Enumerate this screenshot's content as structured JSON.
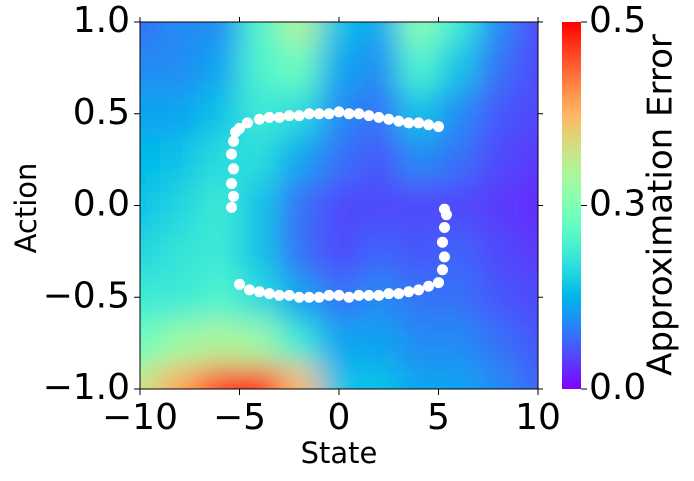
{
  "chart_data": {
    "type": "heatmap",
    "xlabel": "State",
    "ylabel": "Action",
    "colorbar_label": "Approximation Error",
    "x": [
      -10,
      -8,
      -6,
      -4,
      -2,
      0,
      2,
      4,
      6,
      8,
      10
    ],
    "y": [
      1,
      0.75,
      0.5,
      0.25,
      0,
      -0.25,
      -0.5,
      -0.75,
      -1
    ],
    "z": [
      [
        0.08,
        0.1,
        0.1,
        0.22,
        0.32,
        0.15,
        0.12,
        0.28,
        0.2,
        0.1,
        0.05
      ],
      [
        0.1,
        0.1,
        0.12,
        0.22,
        0.25,
        0.12,
        0.1,
        0.22,
        0.15,
        0.08,
        0.05
      ],
      [
        0.12,
        0.12,
        0.15,
        0.2,
        0.18,
        0.1,
        0.08,
        0.15,
        0.1,
        0.06,
        0.05
      ],
      [
        0.14,
        0.15,
        0.18,
        0.18,
        0.12,
        0.08,
        0.06,
        0.1,
        0.08,
        0.05,
        0.04
      ],
      [
        0.15,
        0.17,
        0.2,
        0.15,
        0.08,
        0.05,
        0.05,
        0.05,
        0.05,
        0.04,
        0.03
      ],
      [
        0.17,
        0.19,
        0.2,
        0.15,
        0.08,
        0.05,
        0.07,
        0.06,
        0.07,
        0.05,
        0.04
      ],
      [
        0.2,
        0.2,
        0.22,
        0.18,
        0.12,
        0.08,
        0.1,
        0.08,
        0.08,
        0.06,
        0.05
      ],
      [
        0.25,
        0.3,
        0.32,
        0.3,
        0.2,
        0.12,
        0.12,
        0.1,
        0.1,
        0.08,
        0.06
      ],
      [
        0.35,
        0.42,
        0.5,
        0.54,
        0.4,
        0.15,
        0.15,
        0.12,
        0.12,
        0.1,
        0.07
      ]
    ],
    "clim": [
      0,
      0.54
    ],
    "cticks": [
      {
        "value": 0,
        "label": "0.0"
      },
      {
        "value": 0.27,
        "label": "0.3"
      },
      {
        "value": 0.54,
        "label": "0.5"
      }
    ],
    "colormap": "rainbow",
    "xlim": [
      -10,
      10
    ],
    "xticks": [
      {
        "value": -10,
        "label": "−10"
      },
      {
        "value": -5,
        "label": "−5"
      },
      0,
      5,
      10
    ],
    "ylim": [
      -1,
      1
    ],
    "yticks": [
      {
        "value": -1,
        "label": "−1.0"
      },
      {
        "value": -0.5,
        "label": "−0.5"
      },
      {
        "value": 0,
        "label": "0.0"
      },
      {
        "value": 0.5,
        "label": "0.5"
      },
      {
        "value": 1,
        "label": "1.0"
      }
    ],
    "points": {
      "color": "#ffffff",
      "x": [
        -5.2,
        -5,
        -4.6,
        -4,
        -3.5,
        -3,
        -2.5,
        -2,
        -1.5,
        -1,
        -0.5,
        0,
        0.5,
        1,
        1.5,
        2,
        2.5,
        3,
        3.5,
        4,
        4.5,
        5,
        -5.3,
        -5.4,
        -5.3,
        -5.4,
        -5.3,
        -5.4,
        -5,
        -4.5,
        -4,
        -3.5,
        -3,
        -2.5,
        -2,
        -1.5,
        -1,
        -0.5,
        0,
        0.5,
        1,
        1.5,
        2,
        2.5,
        3,
        3.5,
        4,
        4.5,
        5,
        5.2,
        5.3,
        5.2,
        5.3,
        5.4,
        5.3
      ],
      "y": [
        0.4,
        0.42,
        0.45,
        0.47,
        0.48,
        0.48,
        0.49,
        0.49,
        0.5,
        0.5,
        0.5,
        0.51,
        0.5,
        0.5,
        0.49,
        0.48,
        0.47,
        0.46,
        0.45,
        0.45,
        0.44,
        0.43,
        0.35,
        0.28,
        0.2,
        0.12,
        0.05,
        -0.01,
        -0.43,
        -0.46,
        -0.47,
        -0.48,
        -0.49,
        -0.49,
        -0.5,
        -0.5,
        -0.5,
        -0.49,
        -0.49,
        -0.5,
        -0.49,
        -0.49,
        -0.49,
        -0.48,
        -0.48,
        -0.47,
        -0.46,
        -0.44,
        -0.42,
        -0.35,
        -0.28,
        -0.2,
        -0.12,
        -0.05,
        -0.02
      ]
    }
  }
}
